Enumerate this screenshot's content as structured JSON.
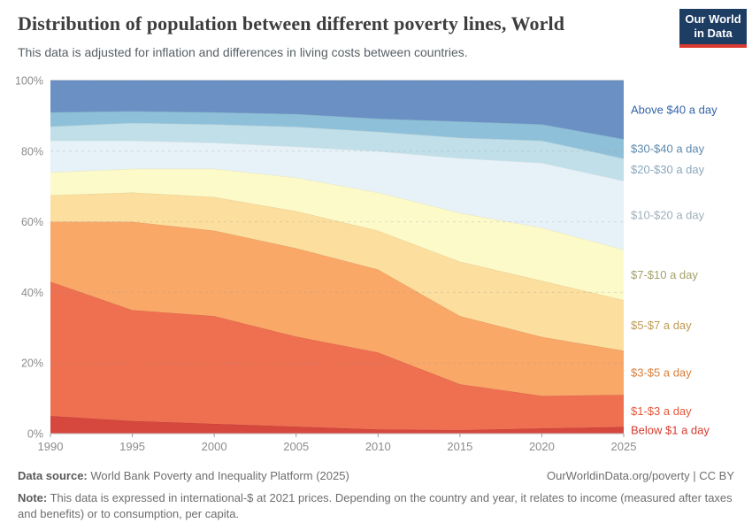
{
  "header": {
    "title": "Distribution of population between different poverty lines, World",
    "subtitle": "This data is adjusted for inflation and differences in living costs between countries.",
    "logo": {
      "line1": "Our World",
      "line2": "in Data"
    }
  },
  "chart_data": {
    "type": "area",
    "stacked": true,
    "title": "Distribution of population between different poverty lines, World",
    "unit": "%",
    "ylim": [
      0,
      100
    ],
    "grid": "horizontal dashed lines every 20%",
    "legend_position": "labels at right edge of areas",
    "x": [
      1990,
      1995,
      2000,
      2005,
      2010,
      2015,
      2020,
      2025
    ],
    "x_tick_labels": [
      "1990",
      "1995",
      "2000",
      "2005",
      "2010",
      "2015",
      "2020",
      "2025"
    ],
    "y_tick_labels": [
      "0%",
      "20%",
      "40%",
      "60%",
      "80%",
      "100%"
    ],
    "series": [
      {
        "label": "Below $1 a day",
        "fill": "#d6483e",
        "label_color": "#d63b2e",
        "values": [
          5.0,
          3.6,
          2.8,
          2.0,
          1.2,
          1.0,
          1.5,
          1.9
        ]
      },
      {
        "label": "$1-$3 a day",
        "fill": "#ef7051",
        "label_color": "#e5573a",
        "values": [
          38.0,
          31.4,
          30.5,
          25.5,
          21.8,
          13.0,
          9.2,
          9.1
        ]
      },
      {
        "label": "$3-$5 a day",
        "fill": "#f9a868",
        "label_color": "#d8803d",
        "values": [
          17.0,
          25.0,
          24.2,
          25.0,
          23.5,
          19.3,
          16.7,
          12.5
        ]
      },
      {
        "label": "$5-$7 a day",
        "fill": "#fcdf9e",
        "label_color": "#bf9a55",
        "values": [
          7.5,
          8.3,
          9.5,
          10.5,
          11.0,
          15.4,
          15.9,
          14.3
        ]
      },
      {
        "label": "$7-$10 a day",
        "fill": "#fdfaca",
        "label_color": "#a3a16b",
        "values": [
          6.5,
          6.7,
          8.0,
          9.5,
          10.8,
          13.8,
          15.0,
          14.3
        ]
      },
      {
        "label": "$10-$20 a day",
        "fill": "#e6f2f8",
        "label_color": "#9fb1ba",
        "values": [
          9.0,
          8.0,
          7.4,
          8.8,
          11.7,
          15.5,
          18.4,
          19.5
        ]
      },
      {
        "label": "$20-$30 a day",
        "fill": "#c0dfe9",
        "label_color": "#8aa8bb",
        "values": [
          4.0,
          5.0,
          5.2,
          5.6,
          5.5,
          5.8,
          6.3,
          6.3
        ]
      },
      {
        "label": "$30-$40 a day",
        "fill": "#8fc0d9",
        "label_color": "#5d89ae",
        "values": [
          4.0,
          3.3,
          3.4,
          3.6,
          3.7,
          4.6,
          4.6,
          5.5
        ]
      },
      {
        "label": "Above $40 a day",
        "fill": "#6a90c4",
        "label_color": "#3464a8",
        "values": [
          9.0,
          8.7,
          9.0,
          9.5,
          10.8,
          11.6,
          12.4,
          16.6
        ]
      }
    ]
  },
  "footer": {
    "source_label": "Data source:",
    "source_value": "World Bank Poverty and Inequality Platform (2025)",
    "link": "OurWorldinData.org/poverty",
    "link_separator": "|",
    "license": "CC BY",
    "note_label": "Note:",
    "note_value": "This data is expressed in international-$ at 2021 prices. Depending on the country and year, it relates to income (measured after taxes and benefits) or to consumption, per capita."
  },
  "colors": {
    "logo_bg": "#1d3d63",
    "logo_accent": "#d93b32",
    "axis_text": "#8c8c8c",
    "grid": "#9a9a9a"
  }
}
